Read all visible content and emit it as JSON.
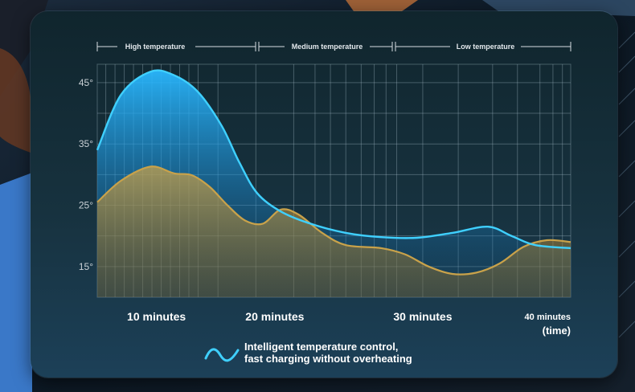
{
  "colors": {
    "line_a": "#3fd0ff",
    "line_b": "#c9a24a"
  },
  "legend": {
    "line1": "Intelligent temperature control,",
    "line2": "fast charging without overheating",
    "icon": "wave-icon"
  },
  "chart_data": {
    "type": "area",
    "title": "",
    "xlabel": "(time)",
    "ylabel": "",
    "xlim": [
      0,
      40
    ],
    "ylim": [
      10,
      48
    ],
    "zones": [
      {
        "label": "High temperature",
        "from": 0,
        "to": 13.6
      },
      {
        "label": "Medium temperature",
        "from": 13.6,
        "to": 25.2
      },
      {
        "label": "Low temperature",
        "from": 25.2,
        "to": 40
      }
    ],
    "y_ticks": [
      {
        "value": 45,
        "label": "45°"
      },
      {
        "value": 35,
        "label": "35°"
      },
      {
        "value": 25,
        "label": "25°"
      },
      {
        "value": 15,
        "label": "15°"
      }
    ],
    "x_ticks": [
      {
        "value": 5,
        "label": "10 minutes"
      },
      {
        "value": 15,
        "label": "20 minutes"
      },
      {
        "value": 27.5,
        "label": "30 minutes"
      },
      {
        "value": 39.3,
        "label": "40 minutes"
      }
    ],
    "series": [
      {
        "x": [
          0,
          2,
          4.5,
          6.5,
          8.5,
          10.5,
          12,
          13.5,
          15.5,
          18,
          21,
          24,
          27,
          30,
          33,
          35,
          37,
          40
        ],
        "y": [
          34,
          43,
          46.8,
          46.2,
          43.5,
          38,
          32,
          27,
          24,
          22,
          20.5,
          19.8,
          19.7,
          20.5,
          21.5,
          20,
          18.5,
          18
        ]
      },
      {
        "x": [
          0,
          2,
          4.5,
          6.5,
          8,
          9.5,
          11,
          12.5,
          14,
          15.5,
          17,
          19,
          21,
          24,
          26,
          28,
          30,
          32,
          34,
          36,
          38,
          40
        ],
        "y": [
          25.5,
          29,
          31.3,
          30.2,
          29.9,
          28,
          25,
          22.5,
          22,
          24.3,
          23.5,
          20.5,
          18.5,
          18,
          17,
          15,
          13.8,
          14,
          15.5,
          18.2,
          19.3,
          19
        ]
      }
    ]
  }
}
